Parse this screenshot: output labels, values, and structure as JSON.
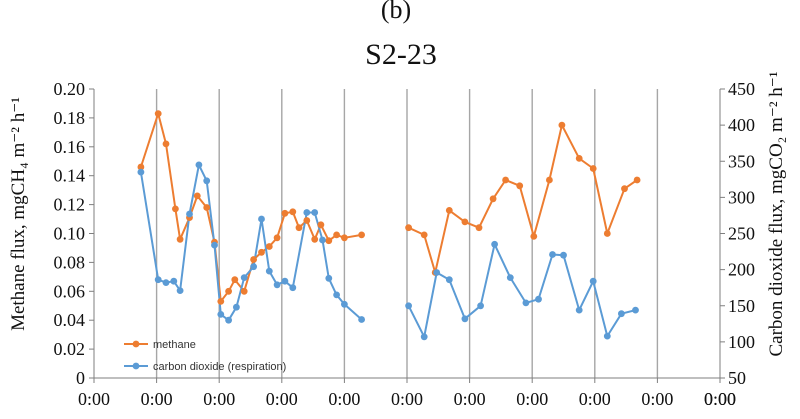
{
  "chart_data": {
    "type": "line",
    "panel_label": "(b)",
    "title": "S2-23",
    "y_left_label": "Methane flux, mgCH₄ m⁻² h⁻¹",
    "y_right_label": "Carbon dioxide flux, mgCO₂ m⁻² h⁻¹",
    "y_left_range": [
      0,
      0.2
    ],
    "y_left_ticks": [
      "0",
      "0.02",
      "0.04",
      "0.06",
      "0.08",
      "0.10",
      "0.12",
      "0.14",
      "0.16",
      "0.18",
      "0.20"
    ],
    "y_right_range": [
      50,
      450
    ],
    "y_right_ticks": [
      "50",
      "100",
      "150",
      "200",
      "250",
      "300",
      "350",
      "400",
      "450"
    ],
    "x_range": [
      0,
      20
    ],
    "x_tick_labels": [
      "0:00",
      "0:00",
      "0:00",
      "0:00",
      "0:00",
      "0:00",
      "0:00",
      "0:00",
      "0:00",
      "0:00",
      "0:00",
      "0:00"
    ],
    "vertical_gridlines_x": [
      2,
      4,
      6,
      8,
      10,
      12,
      14,
      16,
      18
    ],
    "colors": {
      "methane": "#ED7D31",
      "carbon_dioxide": "#5B9BD5",
      "grid": "#A6A6A6",
      "axis": "#7F7F7F"
    },
    "series": [
      {
        "name": "methane",
        "axis": "left",
        "segments": [
          [
            [
              1.5,
              0.146
            ],
            [
              2.05,
              0.183
            ],
            [
              2.3,
              0.162
            ],
            [
              2.6,
              0.117
            ],
            [
              2.75,
              0.096
            ],
            [
              3.05,
              0.111
            ],
            [
              3.3,
              0.126
            ],
            [
              3.6,
              0.118
            ],
            [
              3.85,
              0.094
            ],
            [
              4.05,
              0.053
            ],
            [
              4.3,
              0.06
            ],
            [
              4.5,
              0.068
            ],
            [
              4.8,
              0.06
            ],
            [
              5.1,
              0.082
            ],
            [
              5.35,
              0.087
            ],
            [
              5.6,
              0.091
            ],
            [
              5.85,
              0.097
            ],
            [
              6.1,
              0.114
            ],
            [
              6.35,
              0.115
            ],
            [
              6.55,
              0.104
            ],
            [
              6.8,
              0.109
            ],
            [
              7.05,
              0.096
            ],
            [
              7.25,
              0.106
            ],
            [
              7.5,
              0.095
            ],
            [
              7.75,
              0.099
            ],
            [
              8.0,
              0.097
            ],
            [
              8.55,
              0.099
            ]
          ],
          [
            [
              10.05,
              0.104
            ],
            [
              10.55,
              0.099
            ],
            [
              10.9,
              0.073
            ],
            [
              11.35,
              0.116
            ],
            [
              11.85,
              0.108
            ],
            [
              12.3,
              0.104
            ],
            [
              12.75,
              0.124
            ],
            [
              13.15,
              0.137
            ],
            [
              13.6,
              0.133
            ],
            [
              14.05,
              0.098
            ],
            [
              14.55,
              0.137
            ],
            [
              14.95,
              0.175
            ],
            [
              15.5,
              0.152
            ],
            [
              15.95,
              0.145
            ],
            [
              16.4,
              0.1
            ],
            [
              16.95,
              0.131
            ],
            [
              17.35,
              0.137
            ]
          ]
        ]
      },
      {
        "name": "carbon dioxide (respiration)",
        "axis": "right",
        "segments": [
          [
            [
              1.5,
              335
            ],
            [
              2.05,
              186
            ],
            [
              2.3,
              182
            ],
            [
              2.55,
              184
            ],
            [
              2.75,
              171
            ],
            [
              3.05,
              277
            ],
            [
              3.35,
              345
            ],
            [
              3.6,
              323
            ],
            [
              3.85,
              234
            ],
            [
              4.05,
              138
            ],
            [
              4.3,
              130
            ],
            [
              4.55,
              148
            ],
            [
              4.8,
              189
            ],
            [
              5.1,
              204
            ],
            [
              5.35,
              270
            ],
            [
              5.6,
              198
            ],
            [
              5.85,
              179
            ],
            [
              6.1,
              184
            ],
            [
              6.35,
              175
            ],
            [
              6.8,
              279
            ],
            [
              7.05,
              279
            ],
            [
              7.3,
              241
            ],
            [
              7.5,
              188
            ],
            [
              7.75,
              165
            ],
            [
              8.0,
              152
            ],
            [
              8.55,
              131
            ]
          ],
          [
            [
              10.05,
              150
            ],
            [
              10.55,
              107
            ],
            [
              10.95,
              196
            ],
            [
              11.35,
              186
            ],
            [
              11.85,
              132
            ],
            [
              12.35,
              150
            ],
            [
              12.8,
              235
            ],
            [
              13.3,
              189
            ],
            [
              13.8,
              154
            ],
            [
              14.2,
              159
            ],
            [
              14.65,
              221
            ],
            [
              15.0,
              220
            ],
            [
              15.5,
              144
            ],
            [
              15.95,
              184
            ],
            [
              16.4,
              108
            ],
            [
              16.85,
              139
            ],
            [
              17.3,
              144
            ]
          ]
        ]
      }
    ],
    "legend": [
      {
        "label": "methane",
        "series": "methane"
      },
      {
        "label": "carbon dioxide (respiration)",
        "series": "carbon dioxide (respiration)"
      }
    ]
  }
}
